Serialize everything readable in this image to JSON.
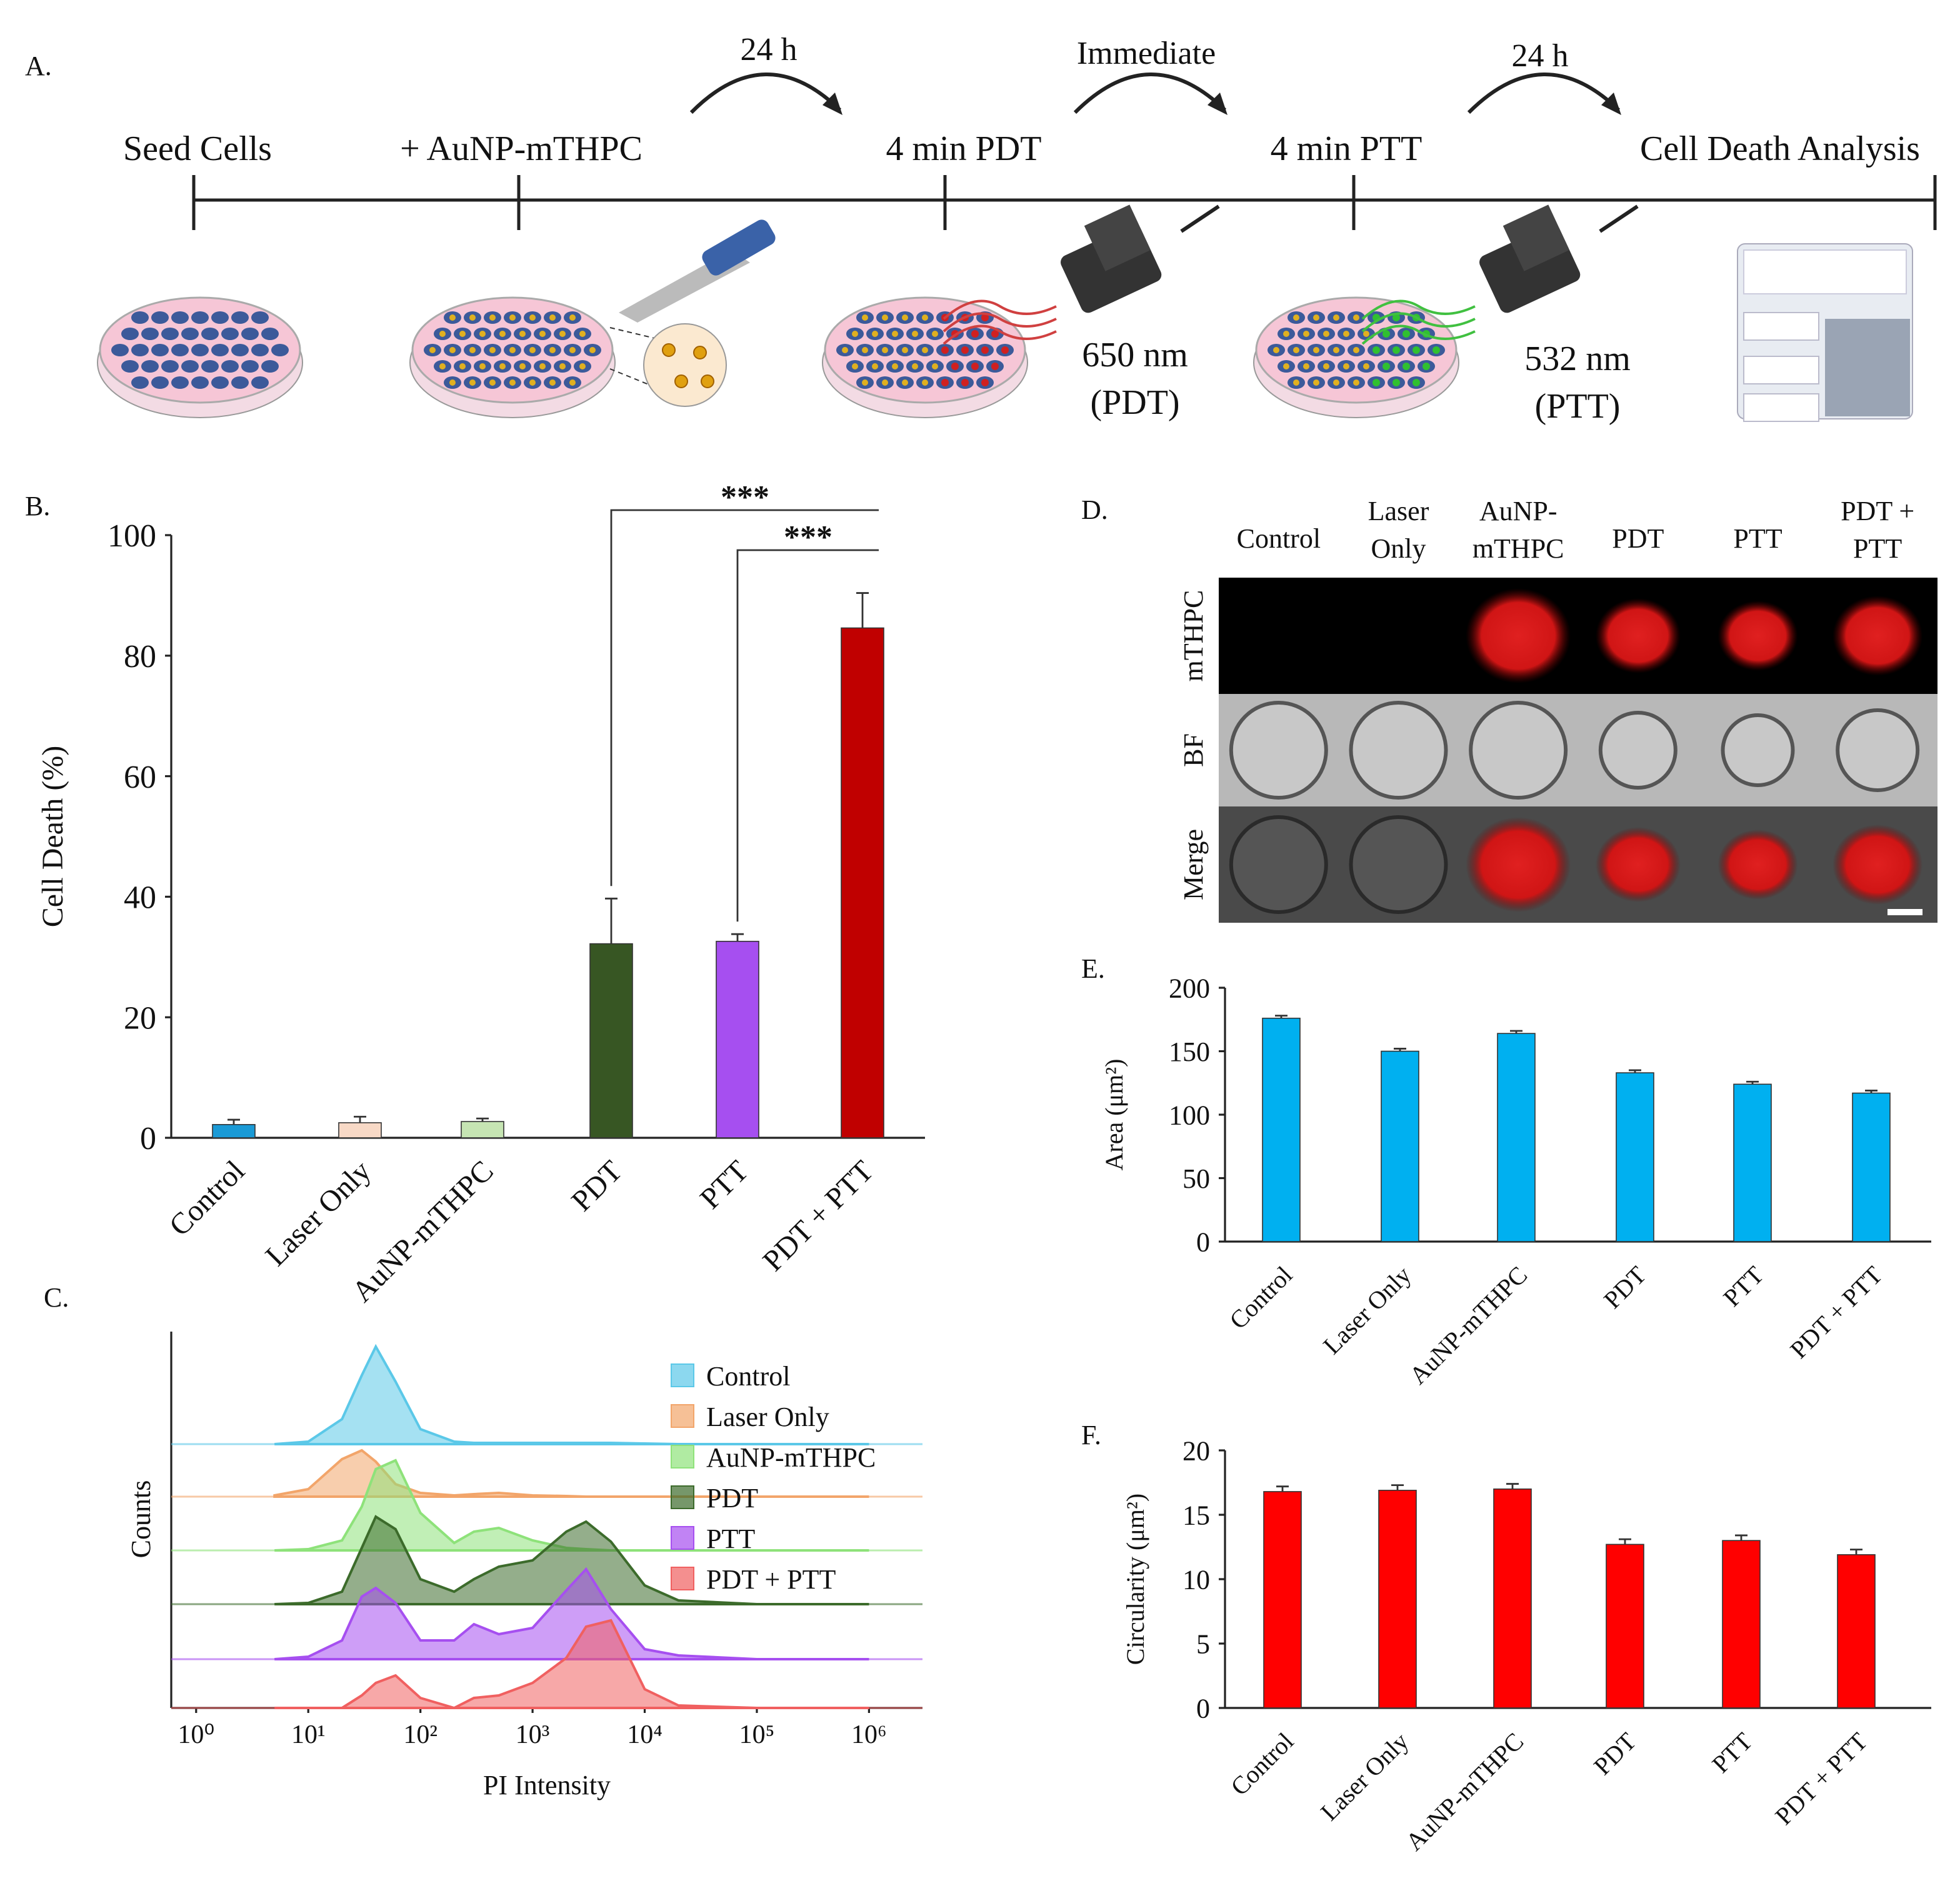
{
  "panel_a": {
    "label": "A.",
    "steps": [
      "Seed Cells",
      "+ AuNP-mTHPC",
      "4 min PDT",
      "4 min PTT",
      "Cell Death Analysis"
    ],
    "intervals": [
      "24 h",
      "Immediate",
      "24 h"
    ],
    "lasers": [
      [
        "650 nm",
        "(PDT)"
      ],
      [
        "532 nm",
        "(PTT)"
      ]
    ]
  },
  "panel_d": {
    "label": "D.",
    "columns": [
      [
        "Control"
      ],
      [
        "Laser",
        "Only"
      ],
      [
        "AuNP-",
        "mTHPC"
      ],
      [
        "PDT"
      ],
      [
        "PTT"
      ],
      [
        "PDT +",
        "PTT"
      ]
    ],
    "rows": [
      "mTHPC",
      "BF",
      "Merge"
    ]
  },
  "chart_data": [
    {
      "type": "bar",
      "label": "B.",
      "ylabel": "Cell Death (%)",
      "categories": [
        "Control",
        "Laser Only",
        "AuNP-mTHPC",
        "PDT",
        "PTT",
        "PDT + PTT"
      ],
      "values": [
        2.2,
        2.5,
        2.7,
        32.2,
        32.6,
        84.6
      ],
      "errors": [
        0.8,
        1.0,
        0.5,
        7.5,
        1.2,
        5.8
      ],
      "colors": [
        "#1a9ad6",
        "#f8d9c6",
        "#c6e5b3",
        "#375623",
        "#a64ff0",
        "#c00000"
      ],
      "ylim": [
        0,
        100
      ],
      "yticks": [
        0,
        20,
        40,
        60,
        80,
        100
      ],
      "annotations": [
        "***",
        "***"
      ]
    },
    {
      "type": "ridgeline",
      "label": "C.",
      "xlabel": "PI Intensity",
      "ylabel": "Counts",
      "xscale": "log",
      "x": [
        5,
        10,
        20,
        30,
        40,
        60,
        100,
        200,
        300,
        500,
        1000,
        2000,
        3000,
        5000,
        10000,
        20000,
        100000,
        1000000
      ],
      "xlim": [
        0.6,
        3000000
      ],
      "xticks": [
        {
          "value": 1,
          "label": "10⁰"
        },
        {
          "value": 10,
          "label": "10¹"
        },
        {
          "value": 100,
          "label": "10²"
        },
        {
          "value": 1000,
          "label": "10³"
        },
        {
          "value": 10000,
          "label": "10⁴"
        },
        {
          "value": 100000,
          "label": "10⁵"
        },
        {
          "value": 1000000,
          "label": "10⁶"
        }
      ],
      "series": [
        {
          "name": "Control",
          "color": "#5bc8e8",
          "values": [
            0,
            2,
            20,
            55,
            78,
            50,
            12,
            2,
            1,
            1,
            1,
            1,
            1,
            1,
            0.5,
            0,
            0,
            0
          ]
        },
        {
          "name": "Laser Only",
          "color": "#f2a56a",
          "values": [
            1,
            6,
            30,
            37,
            28,
            10,
            3,
            1,
            2,
            3,
            1,
            0.5,
            0,
            0,
            0,
            0,
            0,
            0
          ]
        },
        {
          "name": "AuNP-mTHPC",
          "color": "#8ee27a",
          "values": [
            0,
            1,
            8,
            35,
            65,
            72,
            30,
            6,
            15,
            18,
            8,
            2,
            1,
            0,
            0,
            0,
            0,
            0
          ]
        },
        {
          "name": "PDT",
          "color": "#3c6b2b",
          "values": [
            0,
            1,
            10,
            45,
            70,
            60,
            20,
            10,
            20,
            30,
            35,
            58,
            66,
            50,
            15,
            3,
            0,
            0
          ]
        },
        {
          "name": "PTT",
          "color": "#a64ff0",
          "values": [
            0,
            2,
            15,
            50,
            57,
            45,
            15,
            15,
            28,
            20,
            25,
            55,
            72,
            40,
            8,
            3,
            0,
            0
          ]
        },
        {
          "name": "PDT + PTT",
          "color": "#f06060",
          "values": [
            0,
            0,
            0,
            10,
            20,
            26,
            8,
            0,
            8,
            10,
            20,
            40,
            65,
            70,
            15,
            2,
            0,
            0
          ]
        }
      ]
    },
    {
      "type": "bar",
      "label": "E.",
      "ylabel": "Area (μm²)",
      "categories": [
        "Control",
        "Laser Only",
        "AuNP-mTHPC",
        "PDT",
        "PTT",
        "PDT + PTT"
      ],
      "values": [
        176,
        150,
        164,
        133,
        124,
        117
      ],
      "errors": [
        2,
        2,
        2,
        2,
        2,
        2
      ],
      "colors": [
        "#00b0f0",
        "#00b0f0",
        "#00b0f0",
        "#00b0f0",
        "#00b0f0",
        "#00b0f0"
      ],
      "ylim": [
        0,
        200
      ],
      "yticks": [
        0,
        50,
        100,
        150,
        200
      ]
    },
    {
      "type": "bar",
      "label": "F.",
      "ylabel": "Circularity (μm²)",
      "categories": [
        "Control",
        "Laser Only",
        "AuNP-mTHPC",
        "PDT",
        "PTT",
        "PDT + PTT"
      ],
      "values": [
        16.8,
        16.9,
        17.0,
        12.7,
        13.0,
        11.9
      ],
      "errors": [
        0.4,
        0.4,
        0.4,
        0.4,
        0.4,
        0.4
      ],
      "colors": [
        "#ff0000",
        "#ff0000",
        "#ff0000",
        "#ff0000",
        "#ff0000",
        "#ff0000"
      ],
      "ylim": [
        0,
        20
      ],
      "yticks": [
        0,
        5,
        10,
        15,
        20
      ]
    }
  ]
}
